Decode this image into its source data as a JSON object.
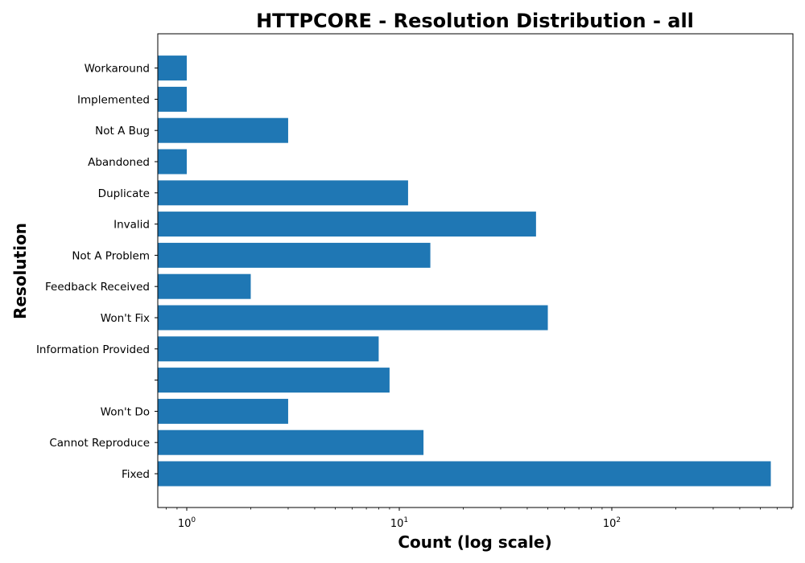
{
  "chart_data": {
    "type": "bar",
    "orientation": "horizontal",
    "title": "HTTPCORE - Resolution Distribution - all",
    "xlabel": "Count (log scale)",
    "ylabel": "Resolution",
    "x_scale": "log",
    "xlim": [
      0.73,
      700
    ],
    "x_ticks": [
      {
        "base": "10",
        "exp": "0",
        "value": 1
      },
      {
        "base": "10",
        "exp": "1",
        "value": 10
      },
      {
        "base": "10",
        "exp": "2",
        "value": 100
      }
    ],
    "categories": [
      "Fixed",
      "Cannot Reproduce",
      "Won't Do",
      "",
      "Information Provided",
      "Won't Fix",
      "Feedback Received",
      "Not A Problem",
      "Invalid",
      "Duplicate",
      "Abandoned",
      "Not A Bug",
      "Implemented",
      "Workaround"
    ],
    "values": [
      560,
      13,
      3,
      9,
      8,
      50,
      2,
      14,
      44,
      11,
      1,
      3,
      1,
      1
    ],
    "bar_color": "#1f77b4",
    "grid": false
  }
}
